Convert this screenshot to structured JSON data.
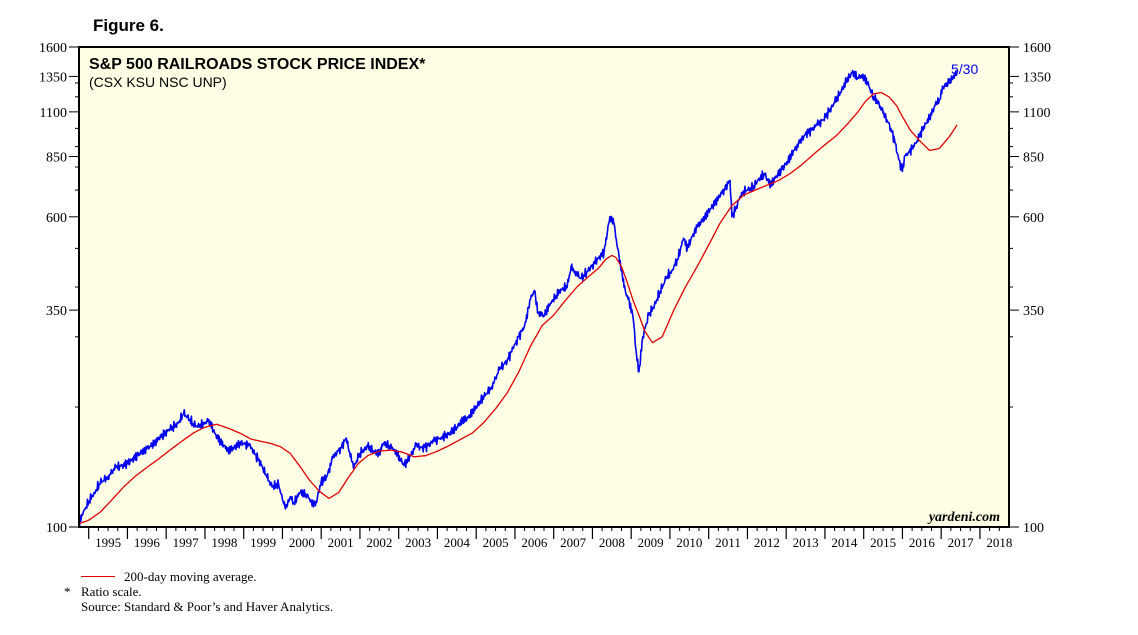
{
  "figure_label": "Figure 6.",
  "chart_data": {
    "type": "line",
    "title": "S&P 500 RAILROADS STOCK PRICE INDEX*",
    "subtitle": "(CSX KSU NSC UNP)",
    "y_scale": "log",
    "ylim": [
      100,
      1600
    ],
    "y_ticks": [
      100,
      350,
      600,
      850,
      1100,
      1350,
      1600
    ],
    "y_tick_labels": [
      "100",
      "350",
      "600",
      "850",
      "1100",
      "1350",
      "1600"
    ],
    "x_range": [
      1994.75,
      2018.75
    ],
    "x_tick_labels": [
      "1995",
      "1996",
      "1997",
      "1998",
      "1999",
      "2000",
      "2001",
      "2002",
      "2003",
      "2004",
      "2005",
      "2006",
      "2007",
      "2008",
      "2009",
      "2010",
      "2011",
      "2012",
      "2013",
      "2014",
      "2015",
      "2016",
      "2017",
      "2018"
    ],
    "grid": false,
    "background": "#ffffe6",
    "end_label": "5/30",
    "watermark": "yardeni.com",
    "series": [
      {
        "color": "#0000ee",
        "x": [
          1994.75,
          1994.85,
          1995.0,
          1995.15,
          1995.3,
          1995.5,
          1995.7,
          1995.9,
          1996.1,
          1996.3,
          1996.5,
          1996.7,
          1996.9,
          1997.1,
          1997.3,
          1997.45,
          1997.55,
          1997.7,
          1997.85,
          1998.0,
          1998.1,
          1998.25,
          1998.4,
          1998.5,
          1998.6,
          1998.75,
          1998.9,
          1999.0,
          1999.15,
          1999.3,
          1999.45,
          1999.6,
          1999.75,
          1999.9,
          2000.0,
          2000.08,
          2000.2,
          2000.3,
          2000.45,
          2000.6,
          2000.75,
          2000.85,
          2001.0,
          2001.15,
          2001.3,
          2001.5,
          2001.65,
          2001.75,
          2001.85,
          2002.0,
          2002.2,
          2002.35,
          2002.5,
          2002.6,
          2002.75,
          2002.9,
          2003.05,
          2003.15,
          2003.3,
          2003.45,
          2003.6,
          2003.75,
          2003.9,
          2004.1,
          2004.3,
          2004.5,
          2004.65,
          2004.8,
          2005.0,
          2005.2,
          2005.4,
          2005.6,
          2005.8,
          2005.95,
          2006.1,
          2006.25,
          2006.4,
          2006.5,
          2006.6,
          2006.75,
          2006.9,
          2007.05,
          2007.2,
          2007.35,
          2007.45,
          2007.55,
          2007.7,
          2007.85,
          2008.0,
          2008.15,
          2008.3,
          2008.45,
          2008.55,
          2008.65,
          2008.75,
          2008.85,
          2008.95,
          2009.05,
          2009.12,
          2009.2,
          2009.3,
          2009.45,
          2009.6,
          2009.75,
          2009.9,
          2010.05,
          2010.2,
          2010.35,
          2010.45,
          2010.55,
          2010.7,
          2010.9,
          2011.1,
          2011.25,
          2011.4,
          2011.55,
          2011.6,
          2011.7,
          2011.85,
          2012.0,
          2012.15,
          2012.3,
          2012.45,
          2012.6,
          2012.75,
          2012.9,
          2013.05,
          2013.2,
          2013.35,
          2013.5,
          2013.65,
          2013.8,
          2013.95,
          2014.1,
          2014.25,
          2014.4,
          2014.55,
          2014.7,
          2014.85,
          2014.95,
          2015.1,
          2015.25,
          2015.4,
          2015.5,
          2015.6,
          2015.7,
          2015.8,
          2015.9,
          2016.0,
          2016.05,
          2016.15,
          2016.3,
          2016.45,
          2016.6,
          2016.75,
          2016.85,
          2016.95,
          2017.05,
          2017.2,
          2017.3,
          2017.41
        ],
        "y": [
          102,
          108,
          116,
          122,
          129,
          134,
          141,
          143,
          147,
          153,
          157,
          163,
          170,
          176,
          182,
          192,
          189,
          181,
          178,
          183,
          186,
          172,
          164,
          160,
          156,
          158,
          163,
          162,
          160,
          152,
          144,
          133,
          126,
          128,
          117,
          111,
          119,
          115,
          122,
          121,
          116,
          113,
          130,
          134,
          149,
          158,
          167,
          150,
          142,
          153,
          159,
          155,
          152,
          162,
          160,
          156,
          147,
          143,
          151,
          160,
          158,
          160,
          164,
          168,
          171,
          178,
          185,
          188,
          200,
          212,
          225,
          248,
          262,
          280,
          300,
          320,
          372,
          392,
          345,
          340,
          360,
          380,
          395,
          400,
          450,
          438,
          420,
          435,
          455,
          472,
          490,
          600,
          580,
          500,
          440,
          390,
          368,
          335,
          280,
          245,
          300,
          340,
          360,
          390,
          420,
          440,
          470,
          530,
          500,
          530,
          565,
          600,
          640,
          670,
          705,
          740,
          600,
          630,
          690,
          700,
          710,
          750,
          765,
          720,
          760,
          790,
          830,
          880,
          920,
          970,
          990,
          1020,
          1050,
          1100,
          1160,
          1230,
          1310,
          1380,
          1340,
          1360,
          1300,
          1200,
          1150,
          1090,
          1050,
          1000,
          930,
          840,
          780,
          850,
          870,
          900,
          960,
          1030,
          1080,
          1150,
          1180,
          1270,
          1300,
          1340,
          1390
        ]
      },
      {
        "name": "200-day moving average.",
        "color": "#e00000",
        "x": [
          1994.75,
          1995.0,
          1995.3,
          1995.6,
          1995.9,
          1996.2,
          1996.5,
          1996.8,
          1997.1,
          1997.4,
          1997.7,
          1998.0,
          1998.3,
          1998.6,
          1998.9,
          1999.2,
          1999.45,
          1999.7,
          1999.95,
          2000.2,
          2000.45,
          2000.7,
          2000.95,
          2001.2,
          2001.45,
          2001.7,
          2001.95,
          2002.2,
          2002.5,
          2002.8,
          2003.1,
          2003.4,
          2003.7,
          2004.0,
          2004.3,
          2004.6,
          2004.9,
          2005.2,
          2005.5,
          2005.8,
          2006.1,
          2006.4,
          2006.7,
          2007.0,
          2007.3,
          2007.6,
          2007.9,
          2008.15,
          2008.35,
          2008.5,
          2008.6,
          2008.75,
          2008.9,
          2009.05,
          2009.2,
          2009.35,
          2009.55,
          2009.8,
          2010.1,
          2010.4,
          2010.7,
          2011.0,
          2011.3,
          2011.6,
          2011.9,
          2012.2,
          2012.5,
          2012.8,
          2013.1,
          2013.4,
          2013.7,
          2014.0,
          2014.3,
          2014.6,
          2014.85,
          2015.05,
          2015.25,
          2015.45,
          2015.65,
          2015.85,
          2016.0,
          2016.2,
          2016.45,
          2016.7,
          2016.95,
          2017.2,
          2017.41
        ],
        "y": [
          102,
          104,
          109,
          117,
          126,
          134,
          141,
          148,
          156,
          164,
          172,
          178,
          181,
          177,
          172,
          166,
          164,
          162,
          159,
          153,
          142,
          131,
          123,
          118,
          122,
          133,
          144,
          151,
          155,
          156,
          154,
          150,
          151,
          155,
          160,
          166,
          172,
          183,
          198,
          217,
          245,
          284,
          320,
          340,
          370,
          400,
          425,
          445,
          470,
          480,
          475,
          450,
          410,
          370,
          340,
          310,
          290,
          300,
          350,
          400,
          450,
          510,
          580,
          640,
          680,
          700,
          720,
          740,
          770,
          810,
          860,
          910,
          960,
          1030,
          1100,
          1170,
          1220,
          1230,
          1200,
          1140,
          1070,
          990,
          930,
          880,
          890,
          950,
          1020
        ]
      }
    ]
  },
  "footnotes": {
    "legend_text": "200-day moving average.",
    "star": "*",
    "ratio_scale": "Ratio scale.",
    "source": "Source: Standard & Poor’s and Haver Analytics."
  }
}
